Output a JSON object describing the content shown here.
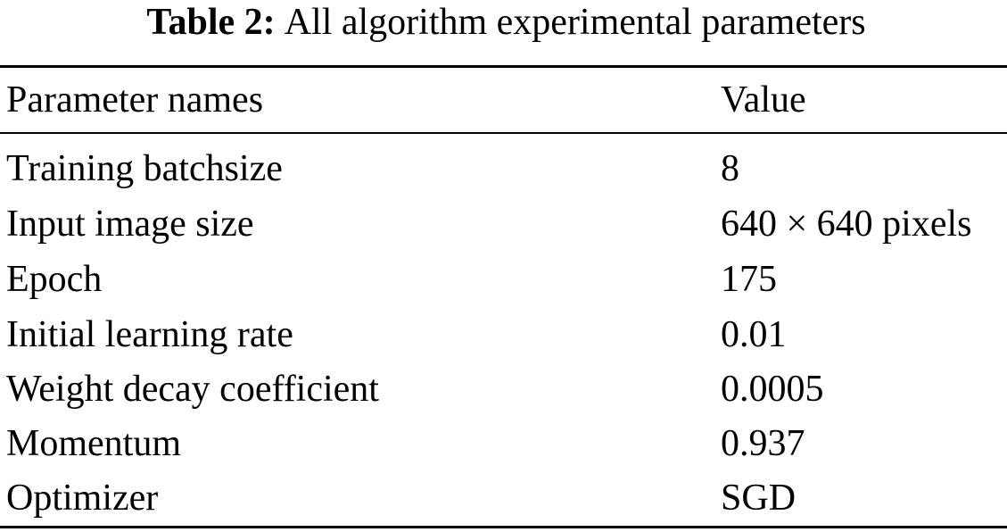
{
  "caption": {
    "label": "Table 2:",
    "text": "All algorithm experimental parameters"
  },
  "table": {
    "headers": [
      "Parameter names",
      "Value"
    ],
    "rows": [
      {
        "name": "Training batchsize",
        "value": "8"
      },
      {
        "name": "Input image size",
        "value": "640 × 640 pixels"
      },
      {
        "name": "Epoch",
        "value": "175"
      },
      {
        "name": "Initial learning rate",
        "value": "0.01"
      },
      {
        "name": "Weight decay coefficient",
        "value": "0.0005"
      },
      {
        "name": "Momentum",
        "value": "0.937"
      },
      {
        "name": "Optimizer",
        "value": "SGD"
      }
    ]
  }
}
